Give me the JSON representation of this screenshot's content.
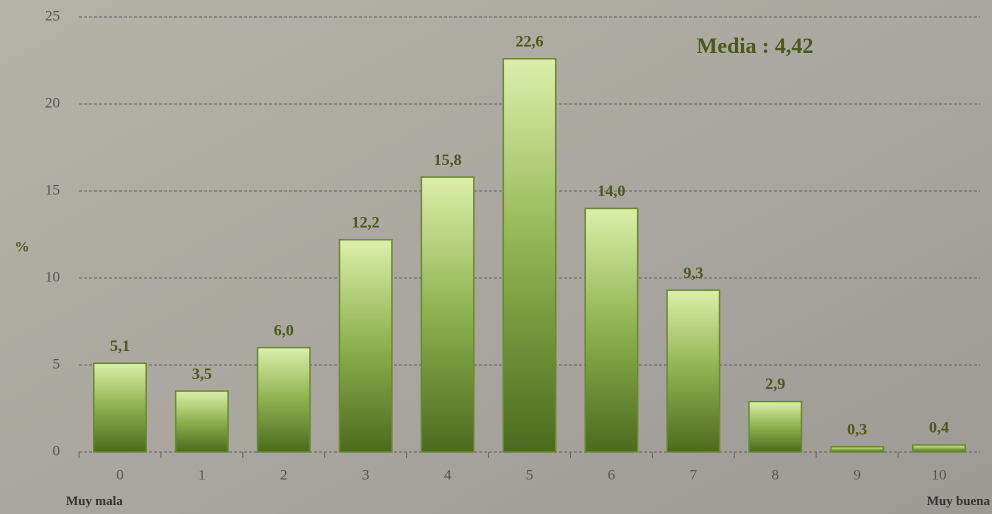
{
  "chart_data": {
    "type": "bar",
    "ylabel": "%",
    "annotation": "Media : 4,42",
    "x_label_left": "Muy mala",
    "x_label_right": "Muy buena",
    "categories": [
      "0",
      "1",
      "2",
      "3",
      "4",
      "5",
      "6",
      "7",
      "8",
      "9",
      "10"
    ],
    "values": [
      5.1,
      3.5,
      6.0,
      12.2,
      15.8,
      22.6,
      14.0,
      9.3,
      2.9,
      0.3,
      0.4
    ],
    "value_labels": [
      "5,1",
      "3,5",
      "6,0",
      "12,2",
      "15,8",
      "22,6",
      "14,0",
      "9,3",
      "2,9",
      "0,3",
      "0,4"
    ],
    "ylim": [
      0,
      25
    ],
    "yticks": [
      0,
      5,
      10,
      15,
      20,
      25
    ],
    "grid": true,
    "color": "#6a8a30"
  }
}
